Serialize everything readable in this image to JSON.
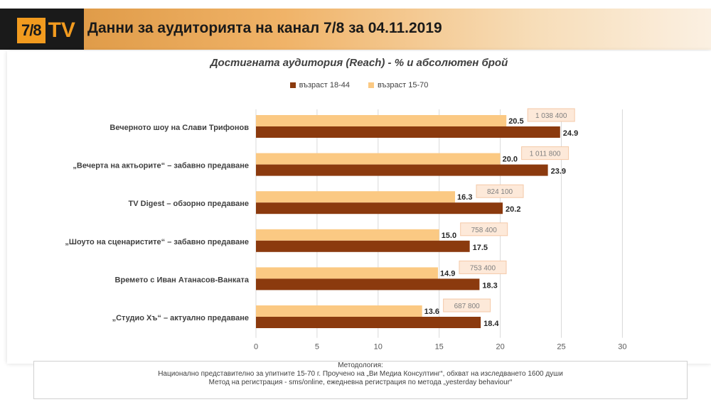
{
  "header": {
    "logo_num": "7/8",
    "logo_tv": "TV",
    "title": "Данни за аудиторията на канал 7/8 за 04.11.2019"
  },
  "methodology": {
    "heading": "Методология:",
    "line1": "Национално представително за упитните 15-70 г. Проучено на „Ви Медиа Консултинг“, обхват на изследването 1600 души",
    "line2": "Метод на регистрация - sms/online, ежедневна регистрация по метода „yesterday behaviour“"
  },
  "colors": {
    "series_dark": "#8b3a0e",
    "series_light": "#fbc983",
    "header_accent": "#f29b1f",
    "grid": "#d9d9d9",
    "label_box": "#fde9d9"
  },
  "chart_data": {
    "type": "bar",
    "orientation": "horizontal",
    "title": "Достигната аудитория (Reach) - % и абсолютен брой",
    "legend_position": "top",
    "xlim": [
      0,
      30
    ],
    "xticks": [
      0,
      5,
      10,
      15,
      20,
      25,
      30
    ],
    "grid": true,
    "categories": [
      "Вечерното шоу на Слави Трифонов",
      "„Вечерта на актьорите“ – забавно предаване",
      "TV Digest – обзорно предаване",
      "„Шоуто на сценаристите“ – забавно предаване",
      "Времето с Иван Атанасов-Ванката",
      "„Студио Хъ“ – актуално предаване"
    ],
    "series": [
      {
        "name": "възраст 15-70",
        "values": [
          20.5,
          20.0,
          16.3,
          15.0,
          14.9,
          13.6
        ]
      },
      {
        "name": "възраст 18-44",
        "values": [
          24.9,
          23.9,
          20.2,
          17.5,
          18.3,
          18.4
        ]
      }
    ],
    "value_labels": {
      "light": [
        "20.5",
        "20.0",
        "16.3",
        "15.0",
        "14.9",
        "13.6"
      ],
      "dark": [
        "24.9",
        "23.9",
        "20.2",
        "17.5",
        "18.3",
        "18.4"
      ]
    },
    "absolute_labels": [
      "1 038 400",
      "1 011 800",
      "824 100",
      "758 400",
      "753 400",
      "687 800"
    ],
    "legend_order": [
      "възраст 18-44",
      "възраст 15-70"
    ]
  }
}
